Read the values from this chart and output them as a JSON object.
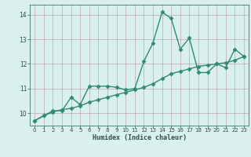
{
  "x": [
    0,
    1,
    2,
    3,
    4,
    5,
    6,
    7,
    8,
    9,
    10,
    11,
    12,
    13,
    14,
    15,
    16,
    17,
    18,
    19,
    20,
    21,
    22,
    23
  ],
  "y_jagged": [
    9.7,
    9.9,
    10.1,
    10.1,
    10.65,
    10.35,
    11.1,
    11.1,
    11.1,
    11.05,
    10.95,
    11.0,
    12.1,
    12.85,
    14.1,
    13.85,
    12.6,
    13.05,
    11.65,
    11.65,
    12.0,
    11.85,
    12.6,
    12.3
  ],
  "y_smooth": [
    9.7,
    9.9,
    10.05,
    10.15,
    10.2,
    10.3,
    10.45,
    10.55,
    10.65,
    10.75,
    10.85,
    10.95,
    11.05,
    11.2,
    11.4,
    11.6,
    11.7,
    11.8,
    11.9,
    11.95,
    12.0,
    12.05,
    12.15,
    12.3
  ],
  "xlim": [
    -0.5,
    23.5
  ],
  "ylim": [
    9.5,
    14.4
  ],
  "yticks": [
    10,
    11,
    12,
    13,
    14
  ],
  "xticks": [
    0,
    1,
    2,
    3,
    4,
    5,
    6,
    7,
    8,
    9,
    10,
    11,
    12,
    13,
    14,
    15,
    16,
    17,
    18,
    19,
    20,
    21,
    22,
    23
  ],
  "xlabel": "Humidex (Indice chaleur)",
  "line_color": "#2e8b74",
  "bg_color": "#daf0ee",
  "grid_color": "#c0a8a8",
  "marker": "D",
  "marker_size": 2.5,
  "linewidth": 1.0
}
